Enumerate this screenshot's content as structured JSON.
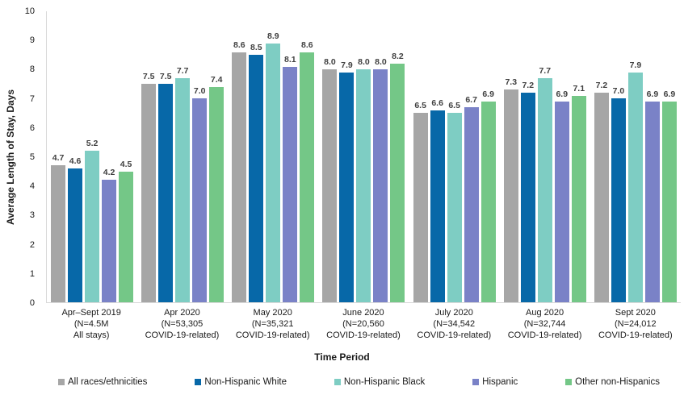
{
  "chart_data": {
    "type": "bar",
    "title": "",
    "xlabel": "Time Period",
    "ylabel": "Average Length of Stay, Days",
    "ylim": [
      0,
      10
    ],
    "yticks": [
      0,
      1,
      2,
      3,
      4,
      5,
      6,
      7,
      8,
      9,
      10
    ],
    "grid": false,
    "legend_position": "bottom",
    "value_labels_shown": true,
    "categories": [
      {
        "lines": [
          "Apr–Sept 2019",
          "(N=4.5M",
          "All stays)"
        ],
        "bar_pattern": "white-dots"
      },
      {
        "lines": [
          "Apr 2020",
          "(N=53,305",
          "COVID-19-related)"
        ],
        "bar_pattern": "solid"
      },
      {
        "lines": [
          "May 2020",
          "(N=35,321",
          "COVID-19-related)"
        ],
        "bar_pattern": "solid"
      },
      {
        "lines": [
          "June 2020",
          "(N=20,560",
          "COVID-19-related)"
        ],
        "bar_pattern": "solid"
      },
      {
        "lines": [
          "July 2020",
          "(N=34,542",
          "COVID-19-related)"
        ],
        "bar_pattern": "solid"
      },
      {
        "lines": [
          "Aug 2020",
          "(N=32,744",
          "COVID-19-related)"
        ],
        "bar_pattern": "solid"
      },
      {
        "lines": [
          "Sept 2020",
          "(N=24,012",
          "COVID-19-related)"
        ],
        "bar_pattern": "solid"
      }
    ],
    "series": [
      {
        "name": "All races/ethnicities",
        "color": "#A6A6A6",
        "values": [
          4.7,
          7.5,
          8.6,
          8.0,
          6.5,
          7.3,
          7.2
        ]
      },
      {
        "name": "Non-Hispanic White",
        "color": "#0768A8",
        "values": [
          4.6,
          7.5,
          8.5,
          7.9,
          6.6,
          7.2,
          7.0
        ]
      },
      {
        "name": "Non-Hispanic Black",
        "color": "#7ECDC3",
        "values": [
          5.2,
          7.7,
          8.9,
          8.0,
          6.5,
          7.7,
          7.9
        ]
      },
      {
        "name": "Hispanic",
        "color": "#7A82C7",
        "values": [
          4.2,
          7.0,
          8.1,
          8.0,
          6.7,
          6.9,
          6.9
        ]
      },
      {
        "name": "Other non-Hispanics",
        "color": "#74C787",
        "values": [
          4.5,
          7.4,
          8.6,
          8.2,
          6.9,
          7.1,
          6.9
        ]
      }
    ],
    "colors": {
      "axis_line": "#D9D9D9",
      "value_label_text": "#404040",
      "axis_text": "#1A1A1A"
    }
  }
}
